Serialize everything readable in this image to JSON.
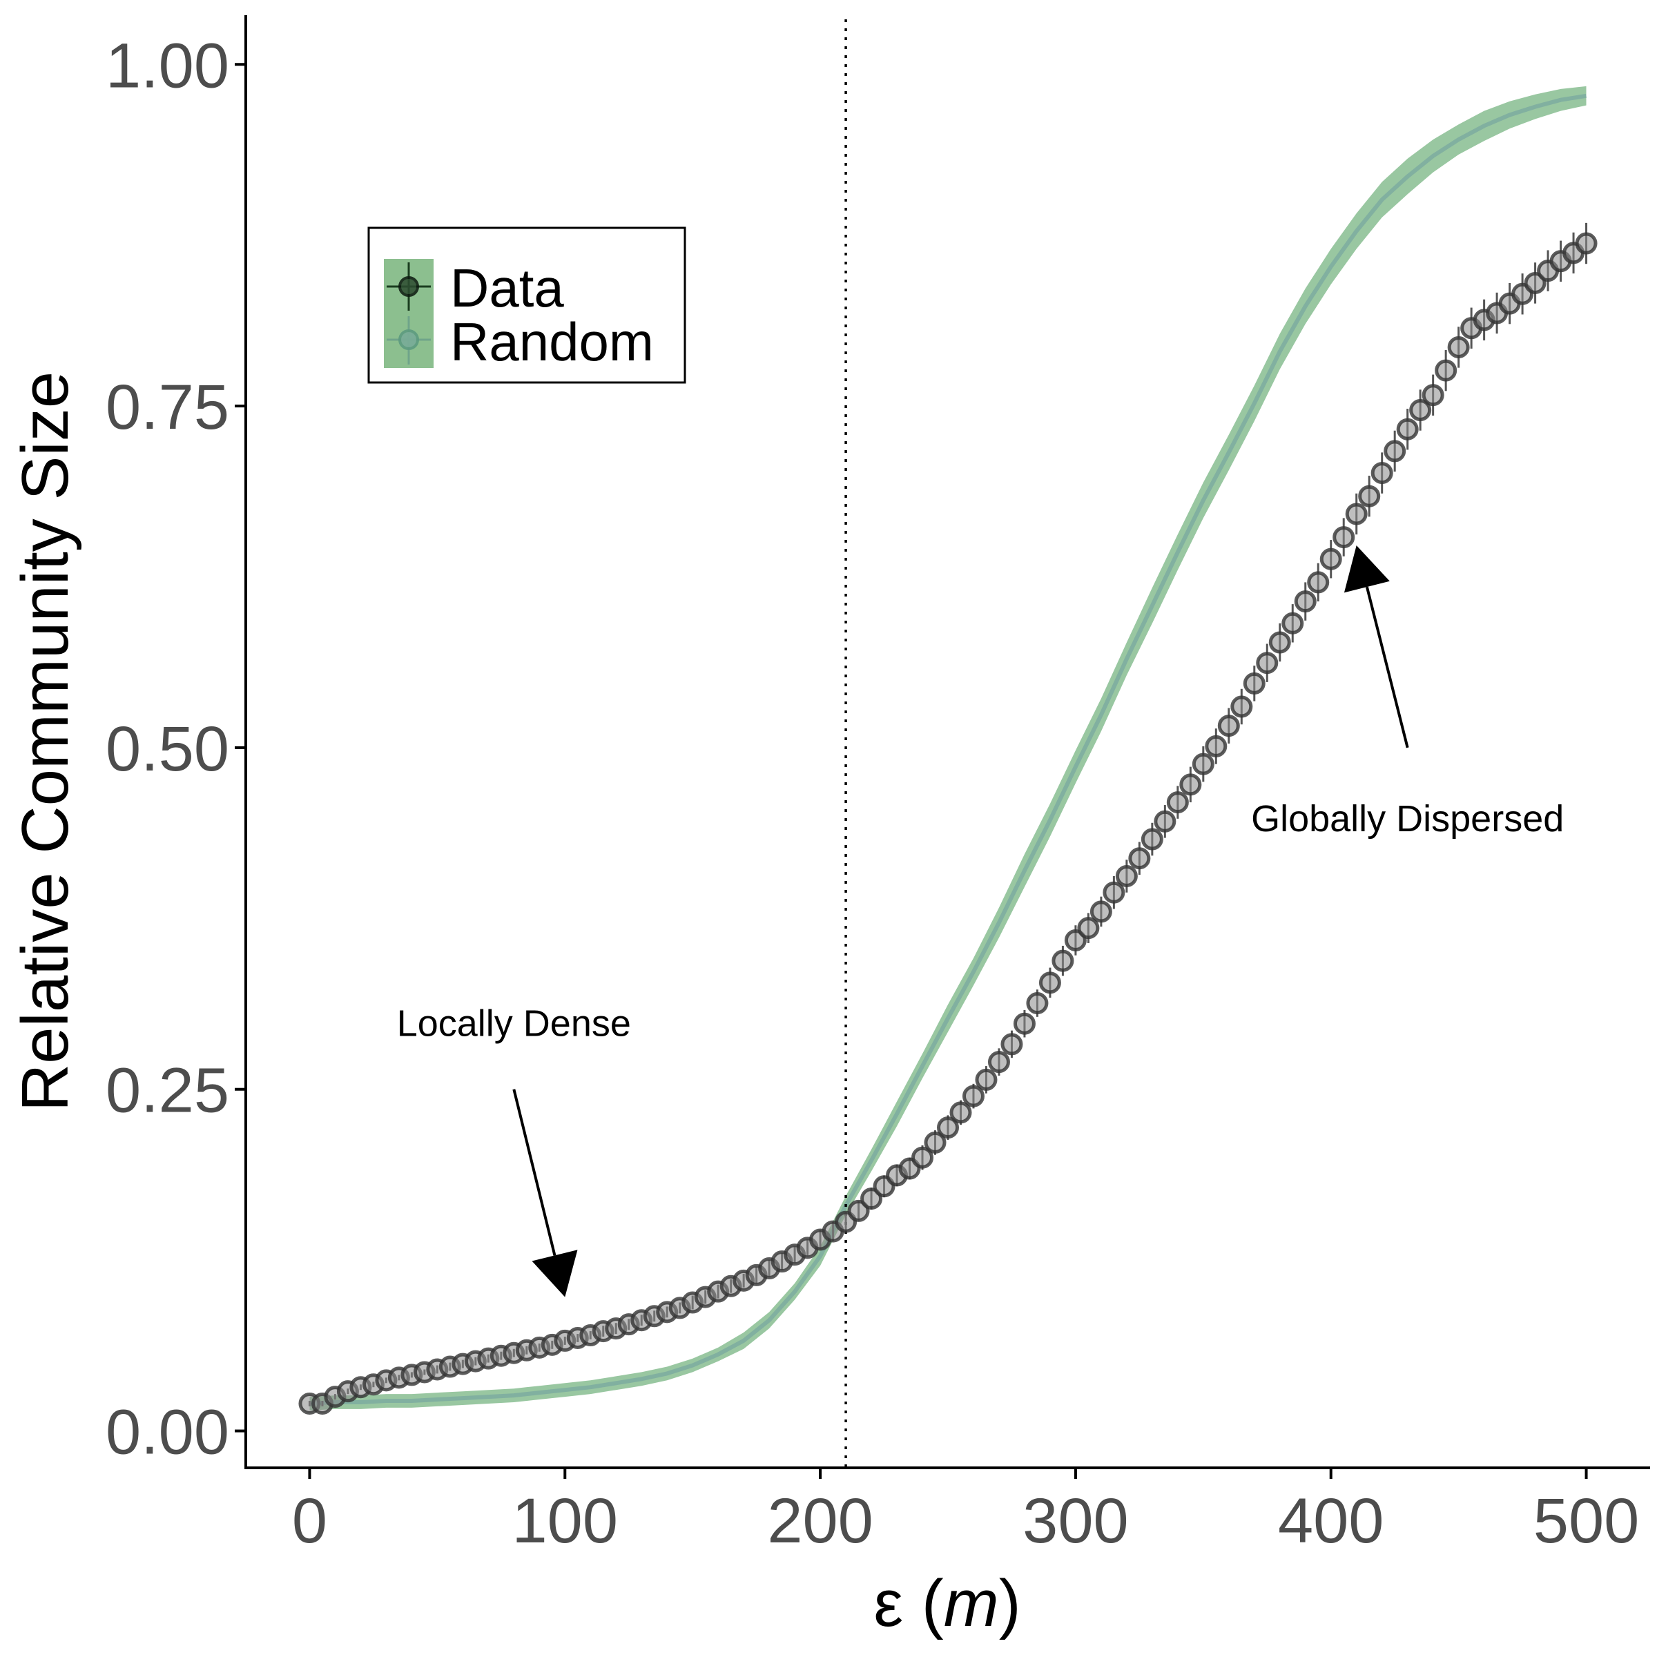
{
  "chart_data": {
    "type": "scatter",
    "xlabel": "ε (m)",
    "xlabel_symbol": "ε",
    "xlabel_unit": "m",
    "ylabel": "Relative Community Size",
    "xlim": [
      -25,
      525
    ],
    "ylim": [
      -0.027,
      1.036
    ],
    "x_ticks": [
      0,
      100,
      200,
      300,
      400,
      500
    ],
    "x_tick_labels": [
      "0",
      "100",
      "200",
      "300",
      "400",
      "500"
    ],
    "y_ticks": [
      0,
      0.25,
      0.5,
      0.75,
      1.0
    ],
    "y_tick_labels": [
      "0.00",
      "0.25",
      "0.50",
      "0.75",
      "1.00"
    ],
    "grid": false,
    "legend_position": "top-left",
    "vline_x": 210,
    "colors": {
      "data": "#1a1a1a",
      "random": "#7fb98a",
      "random_line": "#7aa8a0",
      "axis": "#000000"
    },
    "series": [
      {
        "name": "Data",
        "style": "points-with-errorbars",
        "x": [
          0,
          5,
          10,
          15,
          20,
          25,
          30,
          35,
          40,
          45,
          50,
          55,
          60,
          65,
          70,
          75,
          80,
          85,
          90,
          95,
          100,
          105,
          110,
          115,
          120,
          125,
          130,
          135,
          140,
          145,
          150,
          155,
          160,
          165,
          170,
          175,
          180,
          185,
          190,
          195,
          200,
          205,
          210,
          215,
          220,
          225,
          230,
          235,
          240,
          245,
          250,
          255,
          260,
          265,
          270,
          275,
          280,
          285,
          290,
          295,
          300,
          305,
          310,
          315,
          320,
          325,
          330,
          335,
          340,
          345,
          350,
          355,
          360,
          365,
          370,
          375,
          380,
          385,
          390,
          395,
          400,
          405,
          410,
          415,
          420,
          425,
          430,
          435,
          440,
          445,
          450,
          455,
          460,
          465,
          470,
          475,
          480,
          485,
          490,
          495,
          500
        ],
        "y": [
          0.02,
          0.02,
          0.025,
          0.029,
          0.032,
          0.034,
          0.037,
          0.039,
          0.041,
          0.043,
          0.045,
          0.047,
          0.049,
          0.051,
          0.053,
          0.055,
          0.057,
          0.059,
          0.061,
          0.063,
          0.066,
          0.068,
          0.07,
          0.073,
          0.075,
          0.078,
          0.081,
          0.084,
          0.087,
          0.09,
          0.094,
          0.098,
          0.102,
          0.106,
          0.11,
          0.114,
          0.119,
          0.124,
          0.129,
          0.134,
          0.14,
          0.146,
          0.153,
          0.161,
          0.17,
          0.179,
          0.187,
          0.192,
          0.2,
          0.211,
          0.222,
          0.233,
          0.245,
          0.257,
          0.27,
          0.283,
          0.298,
          0.313,
          0.328,
          0.344,
          0.359,
          0.368,
          0.38,
          0.394,
          0.406,
          0.419,
          0.433,
          0.446,
          0.46,
          0.473,
          0.488,
          0.501,
          0.516,
          0.53,
          0.547,
          0.562,
          0.577,
          0.591,
          0.607,
          0.621,
          0.638,
          0.654,
          0.671,
          0.684,
          0.701,
          0.717,
          0.733,
          0.747,
          0.758,
          0.776,
          0.793,
          0.807,
          0.813,
          0.818,
          0.825,
          0.832,
          0.84,
          0.849,
          0.856,
          0.862,
          0.869
        ],
        "error": [
          0.002,
          0.002,
          0.002,
          0.002,
          0.002,
          0.002,
          0.002,
          0.002,
          0.002,
          0.002,
          0.003,
          0.003,
          0.003,
          0.003,
          0.003,
          0.003,
          0.003,
          0.003,
          0.003,
          0.003,
          0.003,
          0.003,
          0.003,
          0.004,
          0.004,
          0.004,
          0.004,
          0.004,
          0.004,
          0.004,
          0.005,
          0.005,
          0.005,
          0.005,
          0.005,
          0.006,
          0.006,
          0.006,
          0.006,
          0.006,
          0.007,
          0.007,
          0.007,
          0.007,
          0.008,
          0.008,
          0.008,
          0.008,
          0.009,
          0.009,
          0.009,
          0.009,
          0.009,
          0.01,
          0.01,
          0.01,
          0.01,
          0.01,
          0.011,
          0.011,
          0.011,
          0.011,
          0.011,
          0.012,
          0.012,
          0.012,
          0.012,
          0.012,
          0.012,
          0.013,
          0.013,
          0.013,
          0.013,
          0.013,
          0.013,
          0.014,
          0.014,
          0.014,
          0.014,
          0.014,
          0.014,
          0.014,
          0.015,
          0.015,
          0.015,
          0.015,
          0.015,
          0.015,
          0.015,
          0.015,
          0.015,
          0.015,
          0.015,
          0.015,
          0.015,
          0.015,
          0.015,
          0.015,
          0.015,
          0.015,
          0.015
        ]
      },
      {
        "name": "Random",
        "style": "ribbon",
        "x": [
          0,
          10,
          20,
          30,
          40,
          50,
          60,
          70,
          80,
          90,
          100,
          110,
          120,
          130,
          140,
          150,
          160,
          170,
          180,
          190,
          200,
          210,
          220,
          230,
          240,
          250,
          260,
          270,
          280,
          290,
          300,
          310,
          320,
          330,
          340,
          350,
          360,
          370,
          380,
          390,
          400,
          410,
          420,
          430,
          440,
          450,
          460,
          470,
          480,
          490,
          500
        ],
        "y": [
          0.02,
          0.021,
          0.021,
          0.022,
          0.022,
          0.023,
          0.024,
          0.025,
          0.026,
          0.028,
          0.03,
          0.032,
          0.035,
          0.038,
          0.042,
          0.048,
          0.056,
          0.066,
          0.081,
          0.102,
          0.128,
          0.165,
          0.198,
          0.232,
          0.267,
          0.302,
          0.336,
          0.372,
          0.41,
          0.447,
          0.486,
          0.524,
          0.565,
          0.604,
          0.643,
          0.681,
          0.716,
          0.752,
          0.79,
          0.823,
          0.852,
          0.878,
          0.901,
          0.918,
          0.933,
          0.945,
          0.955,
          0.963,
          0.969,
          0.974,
          0.977
        ],
        "lower": [
          0.015,
          0.016,
          0.016,
          0.017,
          0.017,
          0.018,
          0.019,
          0.02,
          0.021,
          0.023,
          0.025,
          0.027,
          0.03,
          0.033,
          0.037,
          0.043,
          0.051,
          0.06,
          0.075,
          0.096,
          0.121,
          0.158,
          0.19,
          0.223,
          0.258,
          0.292,
          0.326,
          0.361,
          0.398,
          0.435,
          0.474,
          0.512,
          0.553,
          0.591,
          0.63,
          0.668,
          0.703,
          0.739,
          0.777,
          0.81,
          0.839,
          0.865,
          0.888,
          0.905,
          0.921,
          0.934,
          0.944,
          0.953,
          0.96,
          0.966,
          0.97
        ],
        "upper": [
          0.025,
          0.026,
          0.026,
          0.027,
          0.027,
          0.028,
          0.029,
          0.03,
          0.031,
          0.033,
          0.035,
          0.037,
          0.04,
          0.043,
          0.047,
          0.053,
          0.061,
          0.072,
          0.087,
          0.108,
          0.135,
          0.172,
          0.206,
          0.241,
          0.276,
          0.312,
          0.346,
          0.383,
          0.422,
          0.459,
          0.498,
          0.536,
          0.577,
          0.617,
          0.656,
          0.694,
          0.729,
          0.765,
          0.803,
          0.836,
          0.865,
          0.891,
          0.914,
          0.931,
          0.945,
          0.956,
          0.966,
          0.973,
          0.978,
          0.982,
          0.984
        ]
      }
    ],
    "annotations": [
      {
        "text": "Locally Dense",
        "text_x": 80,
        "text_y": 0.298,
        "arrow_from": [
          80,
          0.25
        ],
        "arrow_to": [
          100,
          0.098
        ]
      },
      {
        "text": "Globally Dispersed",
        "text_x": 430,
        "text_y": 0.448,
        "arrow_from": [
          430,
          0.5
        ],
        "arrow_to": [
          410,
          0.648
        ]
      }
    ]
  }
}
